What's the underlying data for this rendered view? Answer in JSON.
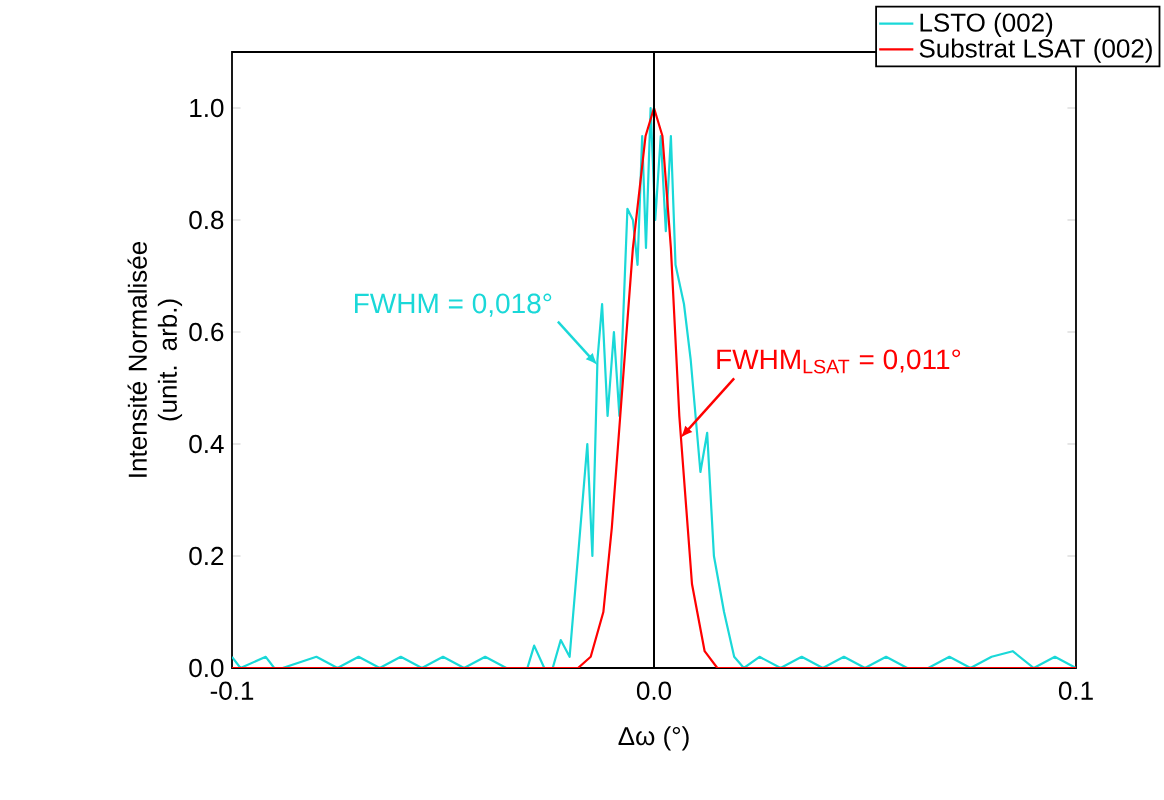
{
  "chart_data": {
    "type": "line",
    "xlabel": "Δω (°)",
    "ylabel": "Intensité Normalisée (unit. arb.)",
    "xlim": [
      -0.1,
      0.1
    ],
    "ylim": [
      0,
      1.1
    ],
    "xticks": [
      {
        "value": -0.1,
        "label": "-0.1"
      },
      {
        "value": 0,
        "label": "0.0"
      },
      {
        "value": 0.1,
        "label": "0.1"
      }
    ],
    "yticks": [
      {
        "value": 0,
        "label": "0.0"
      },
      {
        "value": 0.2,
        "label": "0.2"
      },
      {
        "value": 0.4,
        "label": "0.4"
      },
      {
        "value": 0.6,
        "label": "0.6"
      },
      {
        "value": 0.8,
        "label": "0.8"
      },
      {
        "value": 1.0,
        "label": "1.0"
      }
    ],
    "series": [
      {
        "name": "LSTO (002)",
        "color": "#1ad8d8",
        "x": [
          -0.1,
          -0.098,
          -0.092,
          -0.09,
          -0.088,
          -0.08,
          -0.075,
          -0.07,
          -0.065,
          -0.06,
          -0.055,
          -0.05,
          -0.045,
          -0.04,
          -0.035,
          -0.03,
          -0.0284,
          -0.026,
          -0.024,
          -0.0221,
          -0.02,
          -0.018,
          -0.0158,
          -0.0146,
          -0.0134,
          -0.0123,
          -0.011,
          -0.0095,
          -0.0082,
          -0.0063,
          -0.005,
          -0.0039,
          -0.0028,
          -0.0019,
          -0.0008,
          0.0003,
          0.0016,
          0.0028,
          0.004,
          0.0051,
          0.0071,
          0.0087,
          0.011,
          0.0126,
          0.0142,
          0.0166,
          0.019,
          0.0213,
          0.025,
          0.03,
          0.035,
          0.04,
          0.045,
          0.05,
          0.055,
          0.06,
          0.065,
          0.07,
          0.075,
          0.08,
          0.085,
          0.09,
          0.095,
          0.1
        ],
        "values": [
          0.02,
          0,
          0.02,
          0,
          0,
          0.02,
          0,
          0.02,
          0,
          0.02,
          0,
          0.02,
          0,
          0.02,
          0,
          0,
          0.04,
          0,
          0,
          0.05,
          0.02,
          0.2,
          0.4,
          0.2,
          0.55,
          0.65,
          0.45,
          0.6,
          0.45,
          0.82,
          0.8,
          0.72,
          0.95,
          0.75,
          1.0,
          0.8,
          0.95,
          0.78,
          0.95,
          0.72,
          0.65,
          0.55,
          0.35,
          0.42,
          0.2,
          0.1,
          0.02,
          0,
          0.02,
          0,
          0.02,
          0,
          0.02,
          0,
          0.02,
          0,
          0,
          0.02,
          0,
          0.02,
          0.03,
          0,
          0.02,
          0
        ]
      },
      {
        "name": "Substrat LSAT (002)",
        "color": "#ff0000",
        "x": [
          -0.1,
          -0.02,
          -0.018,
          -0.015,
          -0.012,
          -0.01,
          -0.008,
          -0.005,
          -0.002,
          0,
          0.002,
          0.004,
          0.006,
          0.008,
          0.009,
          0.012,
          0.015,
          0.018,
          0.1
        ],
        "values": [
          0,
          0,
          0,
          0.02,
          0.1,
          0.25,
          0.45,
          0.75,
          0.95,
          1.0,
          0.95,
          0.75,
          0.45,
          0.25,
          0.15,
          0.03,
          0,
          0,
          0
        ]
      }
    ],
    "ref_lines": [
      {
        "axis": "x",
        "value": 0,
        "color": "#000000"
      }
    ],
    "annotations": [
      {
        "text": "FWHM = 0,018°",
        "x": -0.0133,
        "y": 0.54
      },
      {
        "text": "FWHM$_{LSAT}$ = 0,011°",
        "x": 0.0062,
        "y": 0.41
      }
    ],
    "legend": "top right",
    "grid": false,
    "marker": "none",
    "line_style": "solid"
  }
}
